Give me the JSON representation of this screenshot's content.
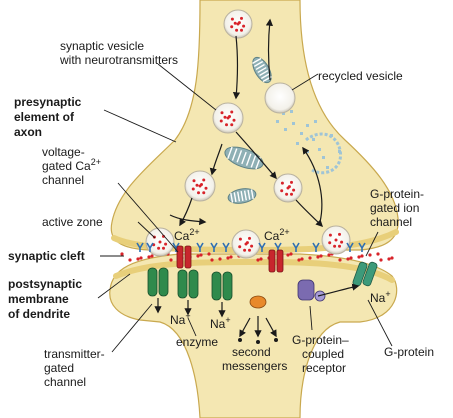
{
  "colors": {
    "terminal": "#f4e7b2",
    "membrane": "#e8cf7a",
    "neurotransmitter": "#d8232a",
    "mitochondrion": "#8fb0b5",
    "ca_channel": "#c8262d",
    "transmitter_channel": "#2f8a4c",
    "g_protein": "#7b6bb0",
    "enzyme": "#e8892a",
    "active_zone": "#2e6fb3",
    "recycling_dots": "#9fc4d6"
  },
  "labels": {
    "synaptic_vesicle": {
      "line1": "synaptic vesicle",
      "line2": "with neurotransmitters"
    },
    "recycled_vesicle": "recycled vesicle",
    "presynaptic": {
      "line1": "presynaptic",
      "line2": "element of",
      "line3": "axon"
    },
    "voltage_gated": {
      "line1": "voltage-",
      "line2": "gated Ca",
      "sup": "2+",
      "line3": "channel"
    },
    "active_zone": "active zone",
    "synaptic_cleft": "synaptic  cleft",
    "postsynaptic": {
      "line1": "postsynaptic",
      "line2": "membrane",
      "line3": "of dendrite"
    },
    "g_protein_gated": {
      "line1": "G-protein-",
      "line2": "gated ion",
      "line3": "channel"
    },
    "transmitter_gated": {
      "line1": "transmitter-",
      "line2": "gated",
      "line3": "channel"
    },
    "enzyme": "enzyme",
    "second_messengers": {
      "line1": "second",
      "line2": "messengers"
    },
    "g_protein_coupled": {
      "line1": "G-protein–",
      "line2": "coupled",
      "line3": "receptor"
    },
    "g_protein": "G-protein"
  },
  "ions": {
    "ca_left": {
      "base": "Ca",
      "sup": "2+"
    },
    "ca_right": {
      "base": "Ca",
      "sup": "2+"
    },
    "na_1": {
      "base": "Na",
      "sup": "+"
    },
    "na_2": {
      "base": "Na",
      "sup": "+"
    },
    "na_3": {
      "base": "Na",
      "sup": "+"
    }
  }
}
